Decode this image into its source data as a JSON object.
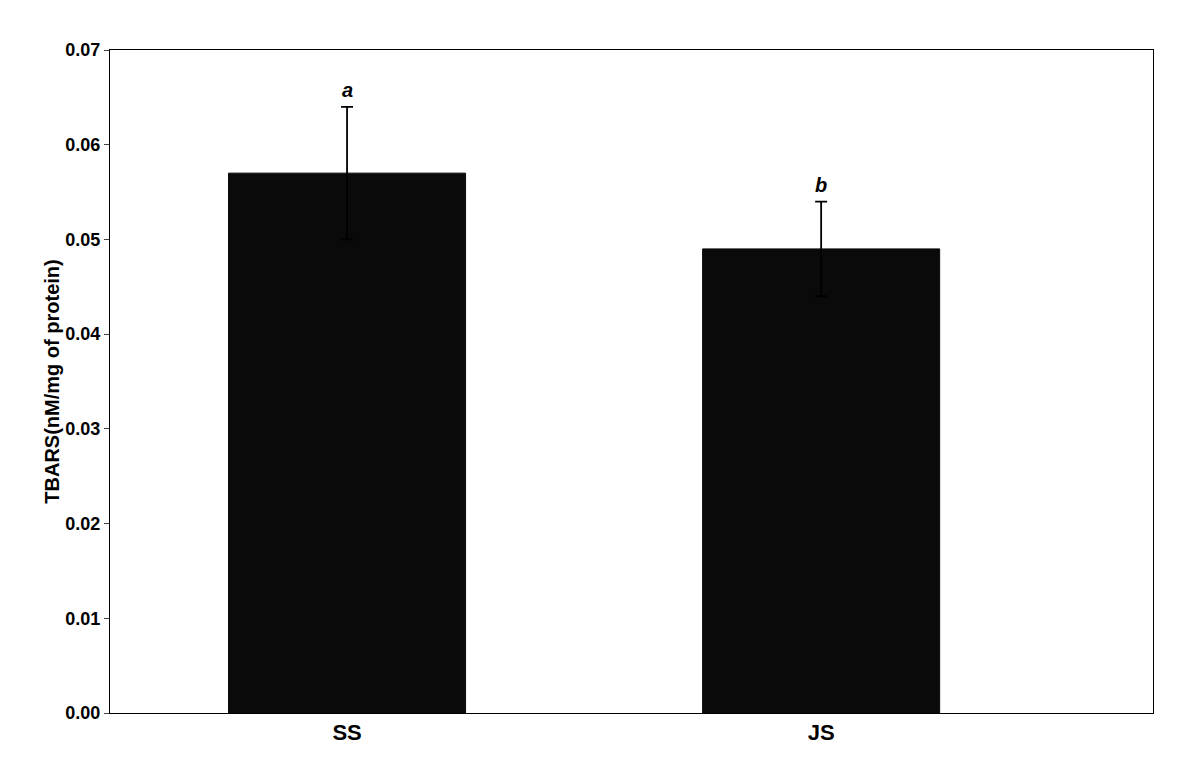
{
  "chart_data": {
    "type": "bar",
    "categories": [
      "SS",
      "JS"
    ],
    "values": [
      0.057,
      0.049
    ],
    "errors": [
      0.007,
      0.005
    ],
    "color": "#0a0a0a",
    "ylabel": "TBARS(nM/mg of protein)",
    "ylim": [
      0.0,
      0.07
    ],
    "yticks": [
      {
        "value": 0.0,
        "label": "0.00"
      },
      0.01,
      0.02,
      0.03,
      0.04,
      0.05,
      0.06,
      0.07
    ],
    "annotations": [
      {
        "category": "SS",
        "text": "a"
      },
      {
        "category": "JS",
        "text": "b"
      }
    ],
    "grid": false
  }
}
